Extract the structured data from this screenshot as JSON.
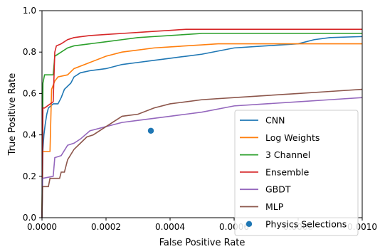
{
  "chart_data": {
    "type": "line",
    "title": "",
    "xlabel": "False Positive Rate",
    "ylabel": "True Positive Rate",
    "xlim": [
      0,
      0.001
    ],
    "ylim": [
      0,
      1.0
    ],
    "grid": false,
    "legend_position": "lower-right",
    "x_ticks": [
      0,
      0.0002,
      0.0004,
      0.0006,
      0.0008,
      0.001
    ],
    "x_tick_labels": [
      "0.0000",
      "0.0002",
      "0.0004",
      "0.0006",
      "0.0008",
      "0.0010"
    ],
    "y_ticks": [
      0,
      0.2,
      0.4,
      0.6,
      0.8,
      1.0
    ],
    "y_tick_labels": [
      "0.0",
      "0.2",
      "0.4",
      "0.6",
      "0.8",
      "1.0"
    ],
    "series": [
      {
        "name": "CNN",
        "color": "#1f77b4",
        "points": [
          [
            0,
            0
          ],
          [
            3e-06,
            0.33
          ],
          [
            6e-06,
            0.4
          ],
          [
            1e-05,
            0.45
          ],
          [
            1.5e-05,
            0.5
          ],
          [
            2e-05,
            0.53
          ],
          [
            3.5e-05,
            0.55
          ],
          [
            5e-05,
            0.55
          ],
          [
            6e-05,
            0.58
          ],
          [
            7e-05,
            0.62
          ],
          [
            9e-05,
            0.65
          ],
          [
            0.0001,
            0.68
          ],
          [
            0.00012,
            0.7
          ],
          [
            0.00015,
            0.71
          ],
          [
            0.0002,
            0.72
          ],
          [
            0.00025,
            0.74
          ],
          [
            0.0003,
            0.75
          ],
          [
            0.00035,
            0.76
          ],
          [
            0.0004,
            0.77
          ],
          [
            0.00045,
            0.78
          ],
          [
            0.0005,
            0.79
          ],
          [
            0.0006,
            0.82
          ],
          [
            0.0007,
            0.83
          ],
          [
            0.0008,
            0.84
          ],
          [
            0.00085,
            0.86
          ],
          [
            0.0009,
            0.87
          ],
          [
            0.001,
            0.875
          ]
        ]
      },
      {
        "name": "Log Weights",
        "color": "#ff7f0e",
        "points": [
          [
            0,
            0
          ],
          [
            2e-06,
            0.32
          ],
          [
            2.5e-05,
            0.32
          ],
          [
            3e-05,
            0.62
          ],
          [
            4e-05,
            0.66
          ],
          [
            5e-05,
            0.68
          ],
          [
            8e-05,
            0.69
          ],
          [
            0.0001,
            0.72
          ],
          [
            0.00015,
            0.75
          ],
          [
            0.0002,
            0.78
          ],
          [
            0.00025,
            0.8
          ],
          [
            0.0003,
            0.81
          ],
          [
            0.00035,
            0.82
          ],
          [
            0.0004,
            0.825
          ],
          [
            0.00045,
            0.83
          ],
          [
            0.0005,
            0.835
          ],
          [
            0.00055,
            0.84
          ],
          [
            0.001,
            0.84
          ]
        ]
      },
      {
        "name": "3 Channel",
        "color": "#2ca02c",
        "points": [
          [
            0,
            0
          ],
          [
            3e-06,
            0.65
          ],
          [
            8e-06,
            0.69
          ],
          [
            3.5e-05,
            0.69
          ],
          [
            4e-05,
            0.78
          ],
          [
            6e-05,
            0.8
          ],
          [
            8e-05,
            0.82
          ],
          [
            0.0001,
            0.83
          ],
          [
            0.00015,
            0.84
          ],
          [
            0.0002,
            0.85
          ],
          [
            0.00025,
            0.86
          ],
          [
            0.0003,
            0.87
          ],
          [
            0.00035,
            0.875
          ],
          [
            0.0004,
            0.88
          ],
          [
            0.00045,
            0.885
          ],
          [
            0.0005,
            0.89
          ],
          [
            0.001,
            0.89
          ]
        ]
      },
      {
        "name": "Ensemble",
        "color": "#d62728",
        "points": [
          [
            0,
            0
          ],
          [
            3e-06,
            0.53
          ],
          [
            8e-06,
            0.53
          ],
          [
            3.5e-05,
            0.56
          ],
          [
            4e-05,
            0.8
          ],
          [
            4.5e-05,
            0.83
          ],
          [
            6e-05,
            0.84
          ],
          [
            8e-05,
            0.86
          ],
          [
            0.0001,
            0.87
          ],
          [
            0.00015,
            0.88
          ],
          [
            0.0002,
            0.885
          ],
          [
            0.00025,
            0.89
          ],
          [
            0.0003,
            0.895
          ],
          [
            0.00035,
            0.9
          ],
          [
            0.0004,
            0.905
          ],
          [
            0.00045,
            0.91
          ],
          [
            0.001,
            0.91
          ]
        ]
      },
      {
        "name": "GBDT",
        "color": "#9467bd",
        "points": [
          [
            0,
            0
          ],
          [
            2e-06,
            0.19
          ],
          [
            3.5e-05,
            0.2
          ],
          [
            4e-05,
            0.29
          ],
          [
            6e-05,
            0.3
          ],
          [
            8e-05,
            0.35
          ],
          [
            0.0001,
            0.36
          ],
          [
            0.00012,
            0.38
          ],
          [
            0.00015,
            0.42
          ],
          [
            0.0002,
            0.44
          ],
          [
            0.00025,
            0.46
          ],
          [
            0.0003,
            0.47
          ],
          [
            0.00035,
            0.48
          ],
          [
            0.0004,
            0.49
          ],
          [
            0.00045,
            0.5
          ],
          [
            0.0005,
            0.51
          ],
          [
            0.0006,
            0.54
          ],
          [
            0.0007,
            0.55
          ],
          [
            0.0008,
            0.56
          ],
          [
            0.0009,
            0.57
          ],
          [
            0.001,
            0.58
          ]
        ]
      },
      {
        "name": "MLP",
        "color": "#8c564b",
        "points": [
          [
            0,
            0
          ],
          [
            2e-06,
            0.15
          ],
          [
            2e-05,
            0.15
          ],
          [
            2.5e-05,
            0.19
          ],
          [
            5.5e-05,
            0.19
          ],
          [
            6e-05,
            0.22
          ],
          [
            7e-05,
            0.22
          ],
          [
            8e-05,
            0.28
          ],
          [
            0.0001,
            0.33
          ],
          [
            0.00012,
            0.36
          ],
          [
            0.00014,
            0.39
          ],
          [
            0.00016,
            0.4
          ],
          [
            0.0002,
            0.44
          ],
          [
            0.00025,
            0.49
          ],
          [
            0.0003,
            0.5
          ],
          [
            0.00035,
            0.53
          ],
          [
            0.0004,
            0.55
          ],
          [
            0.00045,
            0.56
          ],
          [
            0.0005,
            0.57
          ],
          [
            0.0006,
            0.58
          ],
          [
            0.0007,
            0.59
          ],
          [
            0.0008,
            0.6
          ],
          [
            0.0009,
            0.61
          ],
          [
            0.001,
            0.62
          ]
        ]
      }
    ],
    "markers": [
      {
        "name": "Physics Selections",
        "color": "#1f77b4",
        "x": 0.00034,
        "y": 0.42
      }
    ]
  }
}
